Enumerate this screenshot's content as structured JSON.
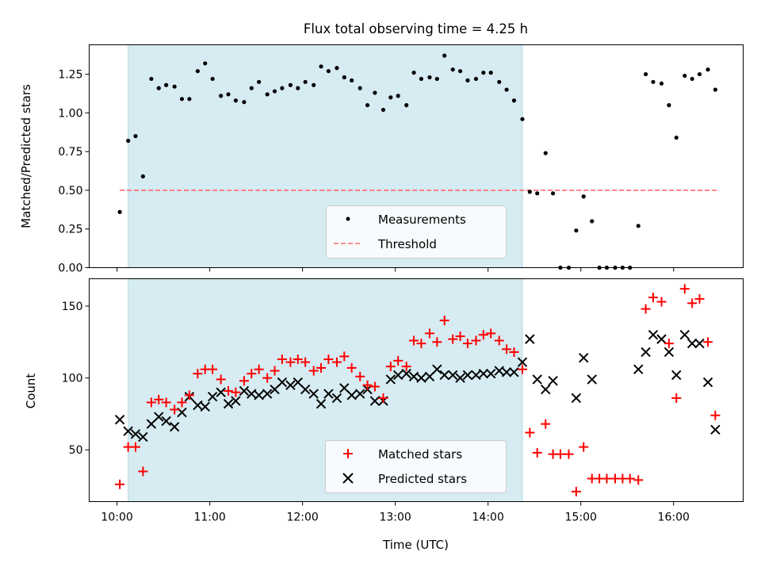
{
  "chart_data": [
    {
      "type": "scatter",
      "title": "Flux total observing time = 4.25 h",
      "ylabel": "Matched/Predicted stars",
      "xlabel": "",
      "xlim": [
        9.7,
        16.75
      ],
      "ylim": [
        0.0,
        1.44
      ],
      "yticks": [
        0.0,
        0.25,
        0.5,
        0.75,
        1.0,
        1.25
      ],
      "ytick_labels": [
        "0.00",
        "0.25",
        "0.50",
        "0.75",
        "1.00",
        "1.25"
      ],
      "shaded_span": [
        10.12,
        14.37
      ],
      "threshold": {
        "name": "Threshold",
        "y": 0.5,
        "x_start": 10.03,
        "x_end": 16.47
      },
      "series": [
        {
          "name": "Measurements",
          "x": [
            10.03,
            10.12,
            10.2,
            10.28,
            10.37,
            10.45,
            10.53,
            10.62,
            10.7,
            10.78,
            10.87,
            10.95,
            11.03,
            11.12,
            11.2,
            11.28,
            11.37,
            11.45,
            11.53,
            11.62,
            11.7,
            11.78,
            11.87,
            11.95,
            12.03,
            12.12,
            12.2,
            12.28,
            12.37,
            12.45,
            12.53,
            12.62,
            12.7,
            12.78,
            12.87,
            12.95,
            13.03,
            13.12,
            13.2,
            13.28,
            13.37,
            13.45,
            13.53,
            13.62,
            13.7,
            13.78,
            13.87,
            13.95,
            14.03,
            14.12,
            14.2,
            14.28,
            14.37,
            14.45,
            14.53,
            14.62,
            14.7,
            14.78,
            14.87,
            14.95,
            15.03,
            15.12,
            15.2,
            15.28,
            15.37,
            15.45,
            15.53,
            15.62,
            15.7,
            15.78,
            15.87,
            15.95,
            16.03,
            16.12,
            16.2,
            16.28,
            16.37,
            16.45
          ],
          "values": [
            0.36,
            0.82,
            0.85,
            0.59,
            1.22,
            1.16,
            1.18,
            1.17,
            1.09,
            1.09,
            1.27,
            1.32,
            1.22,
            1.11,
            1.12,
            1.08,
            1.07,
            1.16,
            1.2,
            1.12,
            1.14,
            1.16,
            1.18,
            1.16,
            1.2,
            1.18,
            1.3,
            1.27,
            1.29,
            1.23,
            1.21,
            1.16,
            1.05,
            1.13,
            1.02,
            1.1,
            1.11,
            1.05,
            1.26,
            1.22,
            1.23,
            1.22,
            1.37,
            1.28,
            1.27,
            1.21,
            1.22,
            1.26,
            1.26,
            1.2,
            1.15,
            1.08,
            0.96,
            0.49,
            0.48,
            0.74,
            0.48,
            0.0,
            0.0,
            0.24,
            0.46,
            0.3,
            0.0,
            0.0,
            0.0,
            0.0,
            0.0,
            0.27,
            1.25,
            1.2,
            1.19,
            1.05,
            0.84,
            1.24,
            1.22,
            1.25,
            1.28,
            1.15
          ]
        }
      ],
      "legend": {
        "location": "bottom-right",
        "entries": [
          "Measurements",
          "Threshold"
        ]
      }
    },
    {
      "type": "scatter",
      "title": "",
      "ylabel": "Count",
      "xlabel": "Time (UTC)",
      "xlim": [
        9.7,
        16.75
      ],
      "ylim": [
        14,
        169
      ],
      "xticks": [
        10,
        11,
        12,
        13,
        14,
        15,
        16
      ],
      "xtick_labels": [
        "10:00",
        "11:00",
        "12:00",
        "13:00",
        "14:00",
        "15:00",
        "16:00"
      ],
      "yticks": [
        50,
        100,
        150
      ],
      "ytick_labels": [
        "50",
        "100",
        "150"
      ],
      "shaded_span": [
        10.12,
        14.37
      ],
      "series": [
        {
          "name": "Matched stars",
          "marker": "+",
          "color": "#ff0000",
          "x": [
            10.03,
            10.12,
            10.2,
            10.28,
            10.37,
            10.45,
            10.53,
            10.62,
            10.7,
            10.78,
            10.87,
            10.95,
            11.03,
            11.12,
            11.2,
            11.28,
            11.37,
            11.45,
            11.53,
            11.62,
            11.7,
            11.78,
            11.87,
            11.95,
            12.03,
            12.12,
            12.2,
            12.28,
            12.37,
            12.45,
            12.53,
            12.62,
            12.7,
            12.78,
            12.87,
            12.95,
            13.03,
            13.12,
            13.2,
            13.28,
            13.37,
            13.45,
            13.53,
            13.62,
            13.7,
            13.78,
            13.87,
            13.95,
            14.03,
            14.12,
            14.2,
            14.28,
            14.37,
            14.45,
            14.53,
            14.62,
            14.7,
            14.78,
            14.87,
            14.95,
            15.03,
            15.12,
            15.2,
            15.28,
            15.37,
            15.45,
            15.53,
            15.62,
            15.7,
            15.78,
            15.87,
            15.95,
            16.03,
            16.12,
            16.2,
            16.28,
            16.37,
            16.45
          ],
          "values": [
            26,
            52,
            52,
            35,
            83,
            85,
            83,
            78,
            83,
            88,
            103,
            106,
            106,
            99,
            91,
            90,
            98,
            103,
            106,
            100,
            105,
            113,
            111,
            113,
            111,
            105,
            107,
            113,
            111,
            115,
            107,
            101,
            95,
            94,
            86,
            108,
            112,
            108,
            126,
            124,
            131,
            125,
            140,
            127,
            129,
            124,
            126,
            130,
            131,
            126,
            120,
            118,
            106,
            62,
            48,
            68,
            47,
            47,
            47,
            21,
            52,
            30,
            30,
            30,
            30,
            30,
            30,
            29,
            148,
            156,
            153,
            124,
            86,
            162,
            152,
            155,
            125,
            74
          ]
        },
        {
          "name": "Predicted stars",
          "marker": "x",
          "color": "#000000",
          "x": [
            10.03,
            10.12,
            10.2,
            10.28,
            10.37,
            10.45,
            10.53,
            10.62,
            10.7,
            10.78,
            10.87,
            10.95,
            11.03,
            11.12,
            11.2,
            11.28,
            11.37,
            11.45,
            11.53,
            11.62,
            11.7,
            11.78,
            11.87,
            11.95,
            12.03,
            12.12,
            12.2,
            12.28,
            12.37,
            12.45,
            12.53,
            12.62,
            12.7,
            12.78,
            12.87,
            12.95,
            13.03,
            13.12,
            13.2,
            13.28,
            13.37,
            13.45,
            13.53,
            13.62,
            13.7,
            13.78,
            13.87,
            13.95,
            14.03,
            14.12,
            14.2,
            14.28,
            14.37,
            14.45,
            14.53,
            14.62,
            14.7,
            14.78,
            14.87,
            14.95,
            15.03,
            15.12,
            15.2,
            15.28,
            15.37,
            15.45,
            15.53,
            15.62,
            15.7,
            15.78,
            15.87,
            15.95,
            16.03,
            16.12,
            16.2,
            16.28,
            16.37,
            16.45
          ],
          "values": [
            71,
            63,
            61,
            59,
            68,
            73,
            70,
            66,
            76,
            87,
            81,
            80,
            87,
            90,
            82,
            84,
            91,
            89,
            88,
            89,
            92,
            97,
            95,
            97,
            92,
            89,
            82,
            89,
            86,
            93,
            88,
            89,
            92,
            84,
            84,
            99,
            102,
            103,
            101,
            100,
            101,
            106,
            102,
            102,
            100,
            102,
            102,
            103,
            103,
            105,
            104,
            104,
            111,
            127,
            99,
            92,
            98,
            null,
            null,
            86,
            114,
            99,
            null,
            null,
            null,
            null,
            null,
            106,
            118,
            130,
            127,
            118,
            102,
            130,
            124,
            124,
            97,
            64
          ]
        }
      ],
      "legend": {
        "location": "bottom-right",
        "entries": [
          "Matched stars",
          "Predicted stars"
        ]
      }
    }
  ]
}
